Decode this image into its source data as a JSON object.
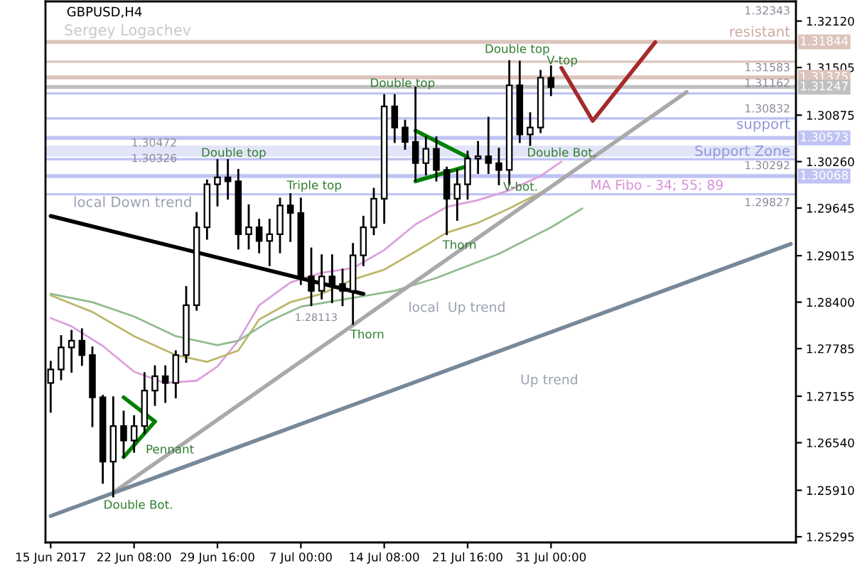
{
  "chart_data": {
    "type": "candlestick",
    "title": "GBPUSD,H4",
    "subtitle": "Sergey Logachev",
    "categories": [
      "15 Jun 2017",
      null,
      null,
      null,
      null,
      null,
      null,
      null,
      "22 Jun 08:00",
      null,
      null,
      null,
      null,
      null,
      null,
      null,
      "29 Jun 16:00",
      null,
      null,
      null,
      null,
      null,
      null,
      null,
      "7 Jul 00:00",
      null,
      null,
      null,
      null,
      null,
      null,
      null,
      "14 Jul 08:00",
      null,
      null,
      null,
      null,
      null,
      null,
      null,
      "21 Jul 16:00",
      null,
      null,
      null,
      null,
      null,
      null,
      null,
      "31 Jul 00:00",
      null,
      null,
      null,
      null,
      null,
      null,
      null,
      null,
      null,
      null,
      null,
      null,
      null,
      null,
      null,
      null,
      null,
      null,
      null,
      null,
      null,
      null,
      null
    ],
    "ohlc": [
      [
        1.2733,
        1.2761,
        1.2695,
        1.2751
      ],
      [
        1.2751,
        1.2795,
        1.2738,
        1.278
      ],
      [
        1.278,
        1.2802,
        1.2748,
        1.2789
      ],
      [
        1.2789,
        1.2804,
        1.2757,
        1.277
      ],
      [
        1.277,
        1.278,
        1.2676,
        1.2714
      ],
      [
        1.2714,
        1.2716,
        1.2601,
        1.2629
      ],
      [
        1.2629,
        1.2714,
        1.2583,
        1.2676
      ],
      [
        1.2676,
        1.2695,
        1.2635,
        1.2657
      ],
      [
        1.2657,
        1.2689,
        1.2642,
        1.2676
      ],
      [
        1.2676,
        1.2746,
        1.2667,
        1.2723
      ],
      [
        1.2723,
        1.2755,
        1.2704,
        1.2742
      ],
      [
        1.2742,
        1.2755,
        1.2708,
        1.2733
      ],
      [
        1.2733,
        1.2775,
        1.2714,
        1.277
      ],
      [
        1.277,
        1.286,
        1.2761,
        1.2836
      ],
      [
        1.2836,
        1.2958,
        1.283,
        1.2939
      ],
      [
        1.2939,
        1.3001,
        1.2924,
        1.2996
      ],
      [
        1.2996,
        1.3028,
        1.2968,
        1.3005
      ],
      [
        1.3005,
        1.3028,
        1.2977,
        1.3
      ],
      [
        1.3,
        1.3015,
        1.2911,
        1.293
      ],
      [
        1.293,
        1.2968,
        1.2911,
        1.2939
      ],
      [
        1.2939,
        1.2949,
        1.2906,
        1.2921
      ],
      [
        1.2921,
        1.2949,
        1.2889,
        1.293
      ],
      [
        1.293,
        1.2977,
        1.2906,
        1.2968
      ],
      [
        1.2968,
        1.2983,
        1.2921,
        1.2958
      ],
      [
        1.2958,
        1.2977,
        1.2864,
        1.2874
      ],
      [
        1.2874,
        1.2911,
        1.2836,
        1.2855
      ],
      [
        1.2855,
        1.2902,
        1.2845,
        1.2874
      ],
      [
        1.2874,
        1.2902,
        1.284,
        1.2864
      ],
      [
        1.2864,
        1.2883,
        1.2836,
        1.2855
      ],
      [
        1.2855,
        1.2917,
        1.28113,
        1.2902
      ],
      [
        1.2902,
        1.2953,
        1.2889,
        1.2939
      ],
      [
        1.2939,
        1.299,
        1.293,
        1.2977
      ],
      [
        1.2977,
        1.3114,
        1.2945,
        1.3099
      ],
      [
        1.3099,
        1.3114,
        1.3052,
        1.3071
      ],
      [
        1.3071,
        1.308,
        1.3043,
        1.3052
      ],
      [
        1.3052,
        1.3124,
        1.3001,
        1.3024
      ],
      [
        1.3024,
        1.3058,
        1.3009,
        1.3043
      ],
      [
        1.3043,
        1.3058,
        1.3001,
        1.3015
      ],
      [
        1.3015,
        1.3018,
        1.293,
        1.2977
      ],
      [
        1.2977,
        1.3015,
        1.2949,
        1.2996
      ],
      [
        1.2996,
        1.3039,
        1.2977,
        1.303
      ],
      [
        1.303,
        1.3052,
        1.3011,
        1.3033
      ],
      [
        1.3033,
        1.3084,
        1.3011,
        1.3024
      ],
      [
        1.3024,
        1.3043,
        1.2996,
        1.3015
      ],
      [
        1.3015,
        1.3159,
        1.2996,
        1.3127
      ],
      [
        1.3127,
        1.31583,
        1.3052,
        1.3062
      ],
      [
        1.3062,
        1.309,
        1.3048,
        1.3071
      ],
      [
        1.3071,
        1.3146,
        1.3065,
        1.3137
      ],
      [
        1.3137,
        1.3152,
        1.3114,
        1.31247
      ],
      null,
      null,
      null,
      null,
      null,
      null,
      null,
      null,
      null,
      null,
      null,
      null,
      null,
      null,
      null,
      null,
      null,
      null,
      null,
      null,
      null,
      null,
      null
    ],
    "series": [
      {
        "type": "line",
        "color": "#dda0dd",
        "values": [
          1.2819,
          null,
          1.2808,
          null,
          null,
          1.2782,
          null,
          null,
          1.2748,
          null,
          null,
          1.2733,
          null,
          null,
          1.2736,
          null,
          1.2755,
          null,
          1.2789,
          null,
          1.2836,
          null,
          null,
          1.2866,
          null,
          null,
          1.2879,
          null,
          null,
          1.2885,
          null,
          null,
          1.2909,
          null,
          null,
          1.2943,
          null,
          null,
          1.2966,
          null,
          null,
          1.2975,
          null,
          null,
          1.2988,
          null,
          null,
          1.3007,
          null,
          1.3026,
          null,
          null,
          null,
          null,
          null,
          null,
          null,
          null,
          null,
          null,
          null,
          null,
          null,
          null,
          null,
          null,
          null,
          null,
          null,
          null,
          null,
          null
        ]
      },
      {
        "type": "line",
        "color": "#bdb76b",
        "values": [
          1.2849,
          null,
          null,
          null,
          1.2827,
          null,
          null,
          null,
          1.2795,
          null,
          null,
          null,
          1.277,
          null,
          null,
          1.2761,
          null,
          null,
          1.2776,
          null,
          1.2817,
          null,
          null,
          1.284,
          null,
          null,
          1.2851,
          null,
          null,
          1.287,
          null,
          null,
          1.2883,
          null,
          null,
          1.2907,
          null,
          null,
          1.2932,
          null,
          null,
          1.2945,
          null,
          null,
          1.2964,
          null,
          null,
          1.2985,
          null,
          1.3001,
          null,
          null,
          null,
          null,
          null,
          null,
          null,
          null,
          null,
          null,
          null,
          null,
          null,
          null,
          null,
          null,
          null,
          null,
          null,
          null,
          null,
          null
        ]
      },
      {
        "type": "line",
        "color": "#8fbc8f",
        "values": [
          1.2851,
          null,
          null,
          null,
          1.284,
          null,
          null,
          null,
          1.2821,
          null,
          null,
          null,
          1.2795,
          null,
          null,
          null,
          1.2783,
          null,
          1.2789,
          null,
          null,
          1.2815,
          null,
          null,
          1.2834,
          null,
          null,
          null,
          null,
          null,
          null,
          null,
          null,
          1.2855,
          null,
          null,
          null,
          1.2872,
          null,
          null,
          null,
          null,
          null,
          1.2904,
          null,
          null,
          null,
          null,
          1.2939,
          null,
          null,
          1.2964,
          null,
          null,
          null,
          null,
          null,
          null,
          null,
          null,
          null,
          null,
          null,
          null,
          null,
          null,
          null,
          null,
          null,
          null,
          null,
          null
        ]
      },
      {
        "type": "line",
        "color": "#000000",
        "values": [
          1.2954,
          null,
          null,
          null,
          null,
          null,
          null,
          null,
          null,
          null,
          null,
          null,
          null,
          null,
          null,
          null,
          null,
          null,
          null,
          null,
          null,
          null,
          null,
          null,
          null,
          null,
          null,
          null,
          null,
          null,
          1.2851,
          null,
          null,
          null,
          null,
          null,
          null,
          null,
          null,
          null,
          null,
          null,
          null,
          null,
          null,
          null,
          null,
          null,
          null,
          null,
          null,
          null,
          null,
          null,
          null,
          null,
          null,
          null,
          null,
          null,
          null,
          null,
          null,
          null,
          null,
          null,
          null,
          null,
          null,
          null,
          null,
          null
        ]
      },
      {
        "type": "line",
        "color": "#a9a9a9",
        "values": [
          null,
          null,
          null,
          null,
          null,
          null,
          1.2588,
          null,
          null,
          null,
          null,
          null,
          null,
          null,
          null,
          null,
          null,
          null,
          null,
          null,
          null,
          null,
          null,
          null,
          null,
          null,
          null,
          null,
          null,
          null,
          null,
          null,
          null,
          null,
          null,
          null,
          null,
          null,
          null,
          null,
          null,
          null,
          null,
          null,
          null,
          null,
          null,
          null,
          null,
          null,
          null,
          null,
          null,
          null,
          null,
          null,
          null,
          null,
          null,
          null,
          null,
          1.3118,
          null,
          null,
          null,
          null,
          null,
          null,
          null,
          null,
          null,
          null
        ]
      },
      {
        "type": "line",
        "color": "#778899",
        "values": [
          1.2557,
          null,
          null,
          null,
          null,
          null,
          null,
          null,
          null,
          null,
          null,
          null,
          null,
          null,
          null,
          null,
          null,
          null,
          null,
          null,
          null,
          null,
          null,
          null,
          null,
          null,
          null,
          null,
          null,
          null,
          null,
          null,
          null,
          null,
          null,
          null,
          null,
          null,
          null,
          null,
          null,
          null,
          null,
          null,
          null,
          null,
          null,
          null,
          null,
          null,
          null,
          null,
          null,
          null,
          null,
          null,
          null,
          null,
          null,
          null,
          null,
          null,
          null,
          null,
          null,
          null,
          null,
          null,
          null,
          null,
          null,
          1.2917
        ]
      },
      {
        "type": "line",
        "color": "#008000",
        "values": [
          null,
          null,
          null,
          null,
          null,
          null,
          null,
          1.2714,
          null,
          null,
          1.2682,
          null,
          null,
          null,
          null,
          null,
          null,
          null,
          null,
          null,
          null,
          null,
          null,
          null,
          null,
          null,
          null,
          null,
          null,
          null,
          null,
          null,
          null,
          null,
          null,
          null,
          null,
          null,
          null,
          null,
          null,
          null,
          null,
          null,
          null,
          null,
          null,
          null,
          null,
          null,
          null,
          null,
          null,
          null,
          null,
          null,
          null,
          null,
          null,
          null,
          null,
          null,
          null,
          null,
          null,
          null,
          null,
          null,
          null,
          null,
          null,
          null
        ]
      },
      {
        "type": "line",
        "color": "#008000",
        "values": [
          null,
          null,
          null,
          null,
          null,
          null,
          null,
          1.2635,
          null,
          null,
          1.2682,
          null,
          null,
          null,
          null,
          null,
          null,
          null,
          null,
          null,
          null,
          null,
          null,
          null,
          null,
          null,
          null,
          null,
          null,
          null,
          null,
          null,
          null,
          null,
          null,
          null,
          null,
          null,
          null,
          null,
          null,
          null,
          null,
          null,
          null,
          null,
          null,
          null,
          null,
          null,
          null,
          null,
          null,
          null,
          null,
          null,
          null,
          null,
          null,
          null,
          null,
          null,
          null,
          null,
          null,
          null,
          null,
          null,
          null,
          null,
          null,
          null
        ]
      },
      {
        "type": "line",
        "color": "#008000",
        "values": [
          null,
          null,
          null,
          null,
          null,
          null,
          null,
          null,
          null,
          null,
          null,
          null,
          null,
          null,
          null,
          null,
          null,
          null,
          null,
          null,
          null,
          null,
          null,
          null,
          null,
          null,
          null,
          null,
          null,
          null,
          null,
          null,
          null,
          null,
          null,
          1.3067,
          null,
          null,
          null,
          null,
          1.3032,
          null,
          null,
          null,
          null,
          null,
          null,
          null,
          null,
          null,
          null,
          null,
          null,
          null,
          null,
          null,
          null,
          null,
          null,
          null,
          null,
          null,
          null,
          null,
          null,
          null,
          null,
          null,
          null,
          null,
          null,
          null
        ]
      },
      {
        "type": "line",
        "color": "#008000",
        "values": [
          null,
          null,
          null,
          null,
          null,
          null,
          null,
          null,
          null,
          null,
          null,
          null,
          null,
          null,
          null,
          null,
          null,
          null,
          null,
          null,
          null,
          null,
          null,
          null,
          null,
          null,
          null,
          null,
          null,
          null,
          null,
          null,
          null,
          null,
          null,
          1.3,
          null,
          null,
          null,
          null,
          1.302,
          null,
          null,
          null,
          null,
          null,
          null,
          null,
          null,
          null,
          null,
          null,
          null,
          null,
          null,
          null,
          null,
          null,
          null,
          null,
          null,
          null,
          null,
          null,
          null,
          null,
          null,
          null,
          null,
          null,
          null,
          null
        ]
      },
      {
        "type": "line",
        "color": "#a52a2a",
        "values": [
          null,
          null,
          null,
          null,
          null,
          null,
          null,
          null,
          null,
          null,
          null,
          null,
          null,
          null,
          null,
          null,
          null,
          null,
          null,
          null,
          null,
          null,
          null,
          null,
          null,
          null,
          null,
          null,
          null,
          null,
          null,
          null,
          null,
          null,
          null,
          null,
          null,
          null,
          null,
          null,
          null,
          null,
          null,
          null,
          null,
          null,
          null,
          null,
          null,
          1.315,
          null,
          null,
          1.308,
          null,
          null,
          null,
          null,
          null,
          1.3184,
          null,
          null,
          null,
          null,
          null,
          null,
          null,
          null,
          null,
          null,
          null,
          null,
          null
        ]
      }
    ],
    "ylim": [
      1.2522,
      1.3238
    ],
    "yticks": [
      {
        "value": 1.3212,
        "label": "1.32120"
      },
      {
        "value": 1.31505,
        "label": "1.31505"
      },
      {
        "value": 1.30875,
        "label": "1.30875"
      },
      {
        "value": 1.3026,
        "label": "1.30260"
      },
      {
        "value": 1.29645,
        "label": "1.29645"
      },
      {
        "value": 1.29015,
        "label": "1.29015"
      },
      {
        "value": 1.284,
        "label": "1.28400"
      },
      {
        "value": 1.27785,
        "label": "1.27785"
      },
      {
        "value": 1.27155,
        "label": "1.27155"
      },
      {
        "value": 1.2654,
        "label": "1.26540"
      },
      {
        "value": 1.2591,
        "label": "1.25910"
      },
      {
        "value": 1.25295,
        "label": "1.25295"
      }
    ],
    "ref_lines": [
      {
        "axis": "y",
        "value": 1.31844,
        "label": "1.31844",
        "color": "#dcc4bc"
      },
      {
        "axis": "y",
        "value": 1.31583,
        "label": null,
        "color": "#dcc4bc"
      },
      {
        "axis": "y",
        "value": 1.31375,
        "label": "1.31375",
        "color": "#dcc4bc"
      },
      {
        "axis": "y",
        "value": 1.31247,
        "label": "1.31247",
        "color": "#c0c0c0"
      },
      {
        "axis": "y",
        "value": 1.31162,
        "label": null,
        "color": "#c0c4f4"
      },
      {
        "axis": "y",
        "value": 1.30832,
        "label": null,
        "color": "#c0c4f4"
      },
      {
        "axis": "y",
        "value": 1.30573,
        "label": "1.30573",
        "color": "#c0c4f4"
      },
      {
        "axis": "y",
        "value": 1.30292,
        "label": null,
        "color": "#c0c4f4"
      },
      {
        "axis": "y",
        "value": 1.30068,
        "label": "1.30068",
        "color": "#c0c4f4"
      },
      {
        "axis": "y",
        "value": 1.29827,
        "label": null,
        "color": "#c0c4f4"
      }
    ],
    "bands": [
      {
        "axis": "y",
        "from": 1.30326,
        "to": 1.30472,
        "color": "#e2e4f8"
      }
    ],
    "annotations": [
      "1.32343",
      "resistant",
      "1.31583",
      "1.31162",
      "1.30832",
      "support",
      "Support Zone",
      "1.30292",
      "MA Fibo - 34; 55; 89",
      "1.29827",
      "1.30472",
      "1.30326",
      "Double top",
      "Triple top",
      "Thorn",
      "1.28113",
      "Pennant",
      "Double Bot.",
      "Double top",
      "Thorn",
      "Double top",
      "V-top",
      "Double Bot.",
      "V-bot.",
      "local Down trend",
      "local  Up trend",
      "Up trend"
    ]
  }
}
